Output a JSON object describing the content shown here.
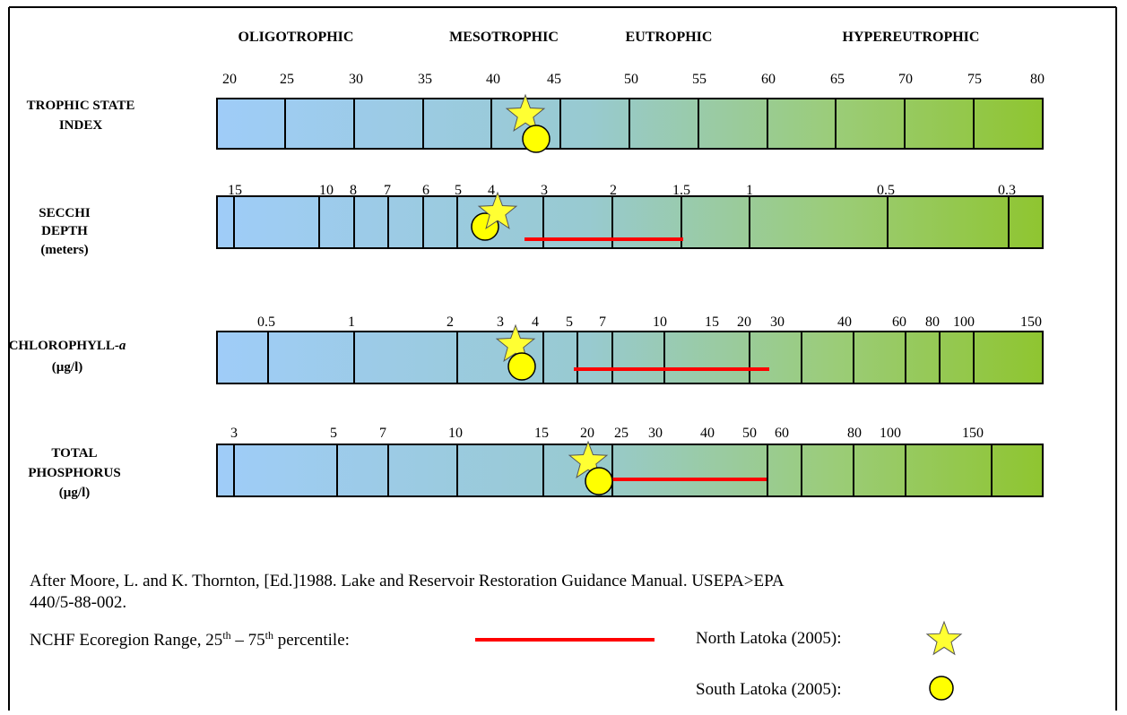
{
  "categories": [
    "OLIGOTROPHIC",
    "MESOTROPHIC",
    "EUTROPHIC",
    "HYPEREUTROPHIC"
  ],
  "scales": [
    {
      "label": [
        [
          "TROPHIC STATE"
        ],
        [
          "INDEX"
        ]
      ],
      "ticks": [
        "20",
        "25",
        "30",
        "35",
        "40",
        "45",
        "50",
        "55",
        "60",
        "65",
        "70",
        "75",
        "80"
      ]
    },
    {
      "label": [
        [
          "SECCHI"
        ],
        [
          "DEPTH"
        ],
        [
          "(meters)"
        ]
      ],
      "ticks": [
        "15",
        "10",
        "8",
        "7",
        "6",
        "5",
        "4",
        "3",
        "2",
        "1.5",
        "1",
        "0.5",
        "0.3"
      ]
    },
    {
      "label": [
        [
          "CHLOROPHYLL-",
          "a"
        ],
        [
          "(µg/l)"
        ]
      ],
      "ticks": [
        "0.5",
        "1",
        "2",
        "3",
        "4",
        "5",
        "7",
        "10",
        "15",
        "20",
        "30",
        "40",
        "60",
        "80",
        "100",
        "150"
      ]
    },
    {
      "label": [
        [
          "TOTAL"
        ],
        [
          "PHOSPHORUS"
        ],
        [
          "(µg/l)"
        ]
      ],
      "ticks": [
        "3",
        "5",
        "7",
        "10",
        "15",
        "20",
        "25",
        "30",
        "40",
        "50",
        "60",
        "80",
        "100",
        "150"
      ]
    }
  ],
  "citation": [
    "After Moore, L. and K. Thornton, [Ed.]1988.  Lake and Reservoir Restoration Guidance Manual.   USEPA>EPA",
    "440/5-88-002."
  ],
  "legend": {
    "range": [
      "NCHF Ecoregion Range, 25",
      "th",
      " – 75",
      "th",
      " percentile:"
    ],
    "north": "North Latoka (2005):",
    "south": "South Latoka (2005):"
  }
}
